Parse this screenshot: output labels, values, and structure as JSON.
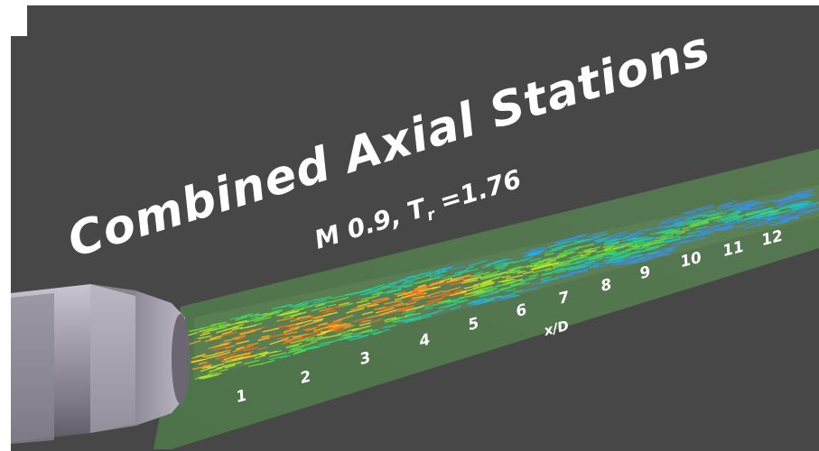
{
  "title": "Combined  Axial Stations",
  "subtitle": {
    "prefix": "M 0.9, T",
    "subscript": "r",
    "suffix": " =1.76"
  },
  "axis_label": "x/D",
  "stations": [
    "1",
    "2",
    "3",
    "4",
    "5",
    "6",
    "7",
    "8",
    "9",
    "10",
    "11",
    "12"
  ],
  "colors": {
    "background": "#474747",
    "plane": "#5a7f54",
    "nozzle": "#9a95a0",
    "text": "#ffffff"
  }
}
